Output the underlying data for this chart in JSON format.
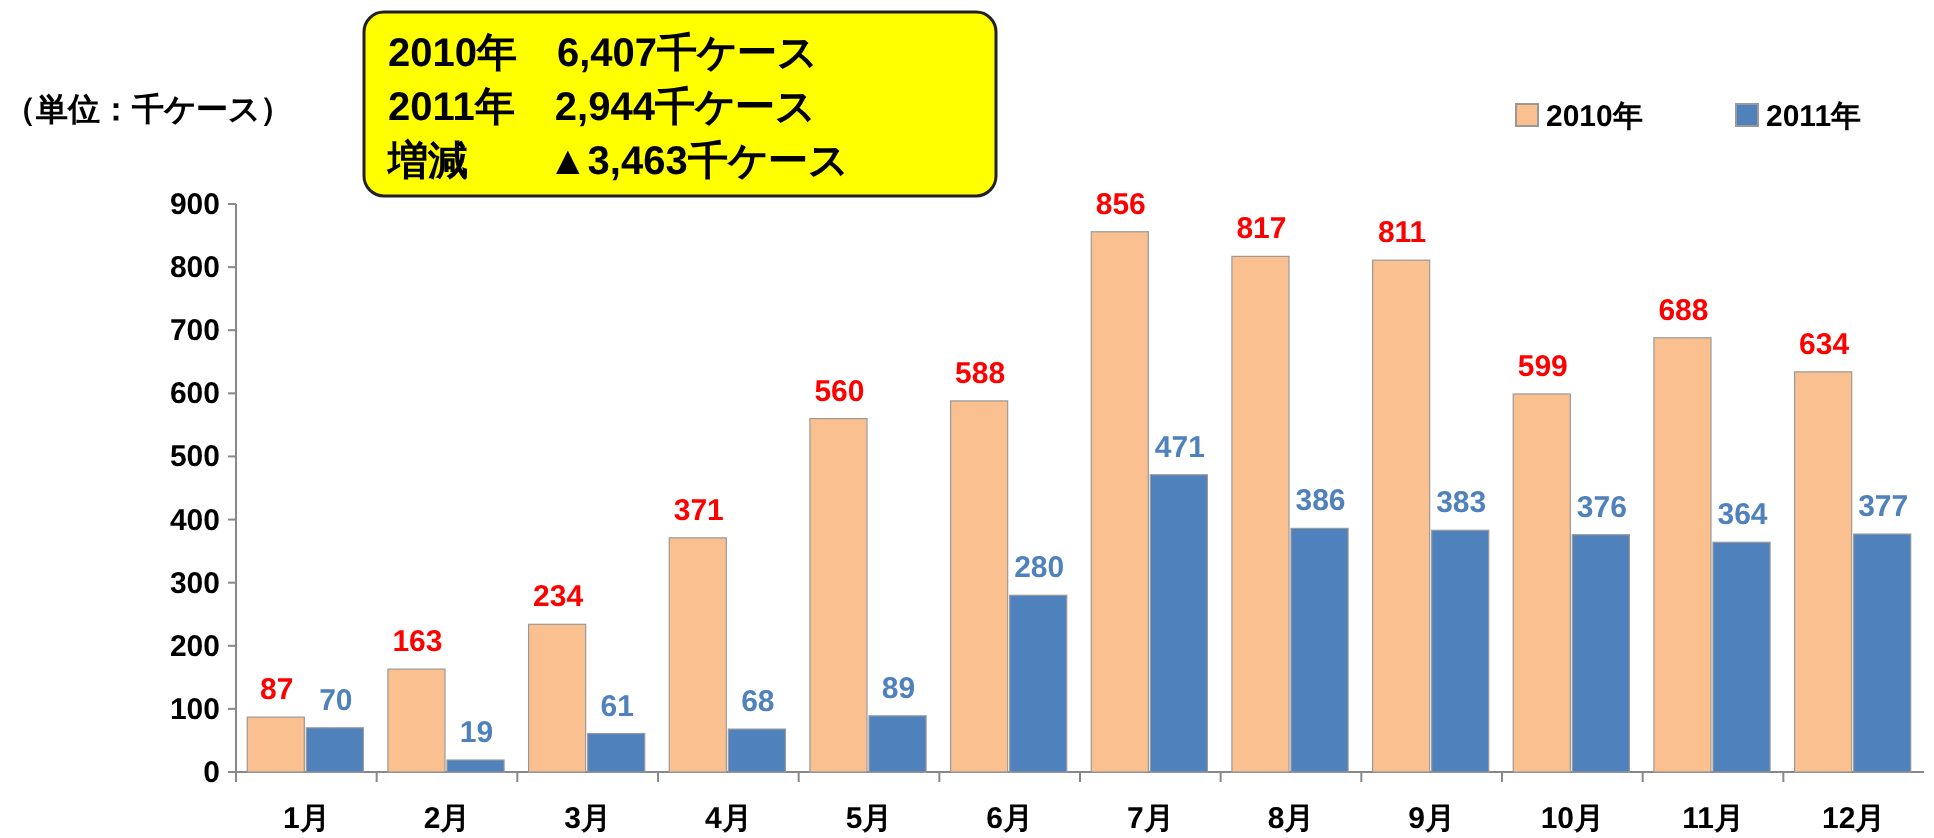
{
  "chart_data": {
    "type": "bar",
    "ylabel": "（単位：千ケース）",
    "annotations": [
      "2010年　6,407千ケース",
      "2011年　2,944千ケース",
      "増減　　▲3,463千ケース"
    ],
    "categories": [
      "1月",
      "2月",
      "3月",
      "4月",
      "5月",
      "6月",
      "7月",
      "8月",
      "9月",
      "10月",
      "11月",
      "12月"
    ],
    "series": [
      {
        "name": "2010年",
        "color": "#fac090",
        "values": [
          87,
          163,
          234,
          371,
          560,
          588,
          856,
          817,
          811,
          599,
          688,
          634
        ]
      },
      {
        "name": "2011年",
        "color": "#4f81bd",
        "values": [
          70,
          19,
          61,
          68,
          89,
          280,
          471,
          386,
          383,
          376,
          364,
          377
        ]
      }
    ],
    "ylim": [
      0,
      900
    ],
    "yticks": [
      0,
      100,
      200,
      300,
      400,
      500,
      600,
      700,
      800,
      900
    ],
    "grid": false,
    "legend": "top right",
    "data_labels": true
  }
}
